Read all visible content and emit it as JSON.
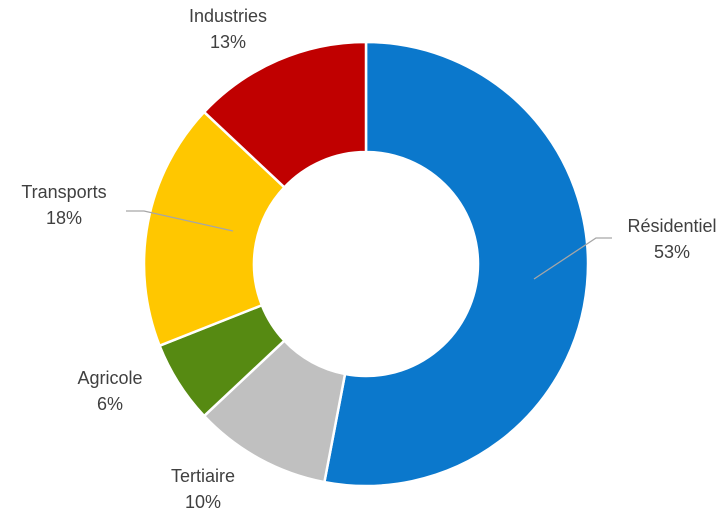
{
  "chart_data": {
    "type": "pie",
    "variant": "doughnut",
    "title": "",
    "categories": [
      "Résidentiel",
      "Tertiaire",
      "Agricole",
      "Transports",
      "Industries"
    ],
    "values": [
      53,
      10,
      6,
      18,
      13
    ],
    "value_labels": [
      "53%",
      "10%",
      "6%",
      "18%",
      "13%"
    ],
    "colors": [
      "#0b78cc",
      "#c0c0c0",
      "#568a12",
      "#ffc700",
      "#c00000"
    ],
    "start_angle_deg": 0,
    "direction": "clockwise",
    "legend": "none"
  }
}
